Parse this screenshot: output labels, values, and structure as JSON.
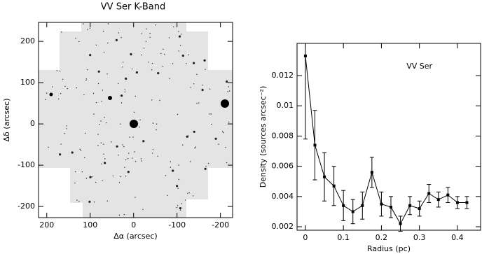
{
  "chart_data": [
    {
      "type": "image",
      "title": "VV Ser K-Band",
      "xlabel": "Δα (arcsec)",
      "ylabel": "Δδ (arcsec)",
      "xlim": [
        219,
        -228
      ],
      "ylim": [
        -227,
        246
      ],
      "xticks": [
        200,
        100,
        0,
        -100,
        -200
      ],
      "yticks": [
        -200,
        -100,
        0,
        100,
        200
      ]
    },
    {
      "type": "line",
      "xlabel": "Radius (pc)",
      "ylabel": "Density (sources arcsec⁻²)",
      "annotation": "VV Ser",
      "x": [
        0,
        0.025,
        0.05,
        0.075,
        0.1,
        0.125,
        0.15,
        0.175,
        0.2,
        0.225,
        0.25,
        0.275,
        0.3,
        0.325,
        0.35,
        0.375,
        0.4,
        0.425
      ],
      "series": [
        {
          "color": "#000000",
          "values": [
            0.0133,
            0.0074,
            0.0053,
            0.0047,
            0.0034,
            0.003,
            0.0034,
            0.0056,
            0.0035,
            0.0033,
            0.0022,
            0.0034,
            0.0032,
            0.0042,
            0.0038,
            0.0041,
            0.0036,
            0.0036
          ],
          "errors": [
            0.0055,
            0.0023,
            0.0016,
            0.0013,
            0.001,
            0.0008,
            0.0009,
            0.001,
            0.0008,
            0.0007,
            0.0005,
            0.0006,
            0.0005,
            0.0006,
            0.0005,
            0.0005,
            0.0004,
            0.0004
          ]
        }
      ],
      "xlim": [
        -0.022,
        0.461
      ],
      "ylim": [
        0.00177,
        0.01413
      ],
      "xticks": [
        0,
        0.1,
        0.2,
        0.3,
        0.4
      ],
      "yticks": [
        0.002,
        0.004,
        0.006,
        0.008,
        0.01,
        0.012
      ]
    }
  ]
}
